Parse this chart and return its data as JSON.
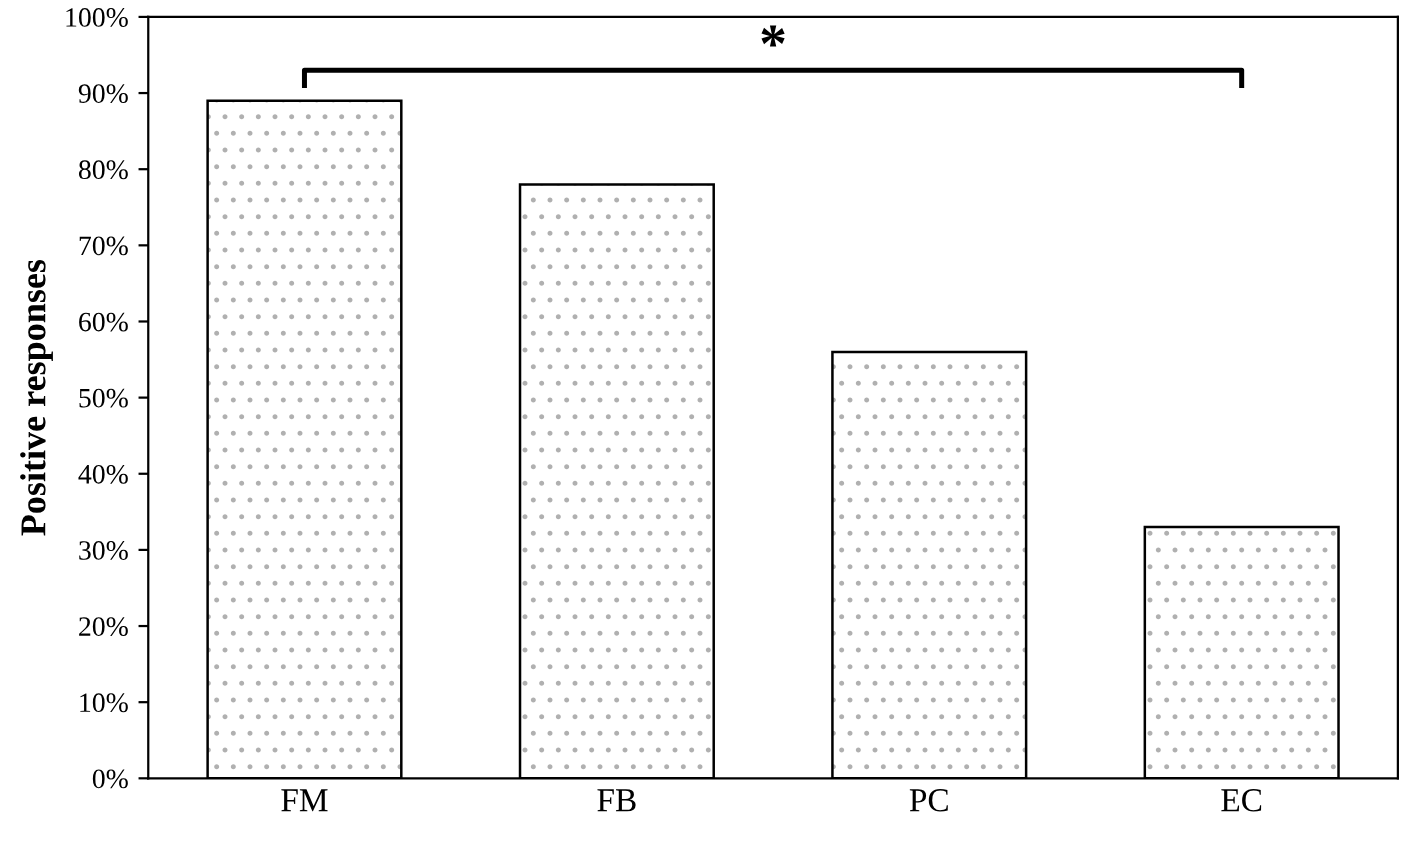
{
  "chart_data": {
    "type": "bar",
    "ylabel": "Positive responses",
    "categories": [
      "FM",
      "FB",
      "PC",
      "EC"
    ],
    "values": [
      89,
      78,
      56,
      33
    ],
    "color": "#ffffff",
    "ylim": [
      0,
      100
    ],
    "yticks": [
      {
        "value": 0,
        "label": "0%"
      },
      {
        "value": 10,
        "label": "10%"
      },
      {
        "value": 20,
        "label": "20%"
      },
      {
        "value": 30,
        "label": "30%"
      },
      {
        "value": 40,
        "label": "40%"
      },
      {
        "value": 50,
        "label": "50%"
      },
      {
        "value": 60,
        "label": "60%"
      },
      {
        "value": 70,
        "label": "70%"
      },
      {
        "value": 80,
        "label": "80%"
      },
      {
        "value": 90,
        "label": "90%"
      },
      {
        "value": 100,
        "label": "100%"
      }
    ],
    "grid": false,
    "legend": false,
    "annotations": [
      "*"
    ]
  }
}
